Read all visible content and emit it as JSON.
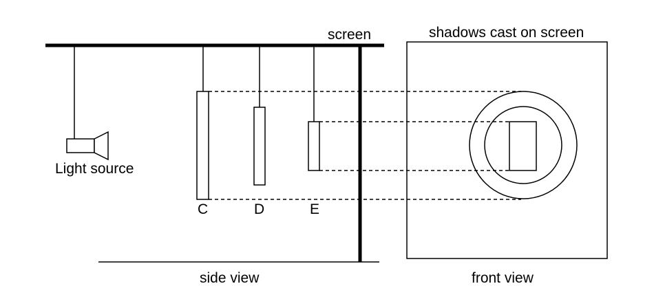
{
  "labels": {
    "screen": "screen",
    "light_source": "Light source",
    "object_c": "C",
    "object_d": "D",
    "object_e": "E",
    "side_view": "side view",
    "front_view": "front view",
    "front_view_title": "shadows cast on screen"
  },
  "colors": {
    "stroke": "#000000",
    "background": "#ffffff"
  }
}
